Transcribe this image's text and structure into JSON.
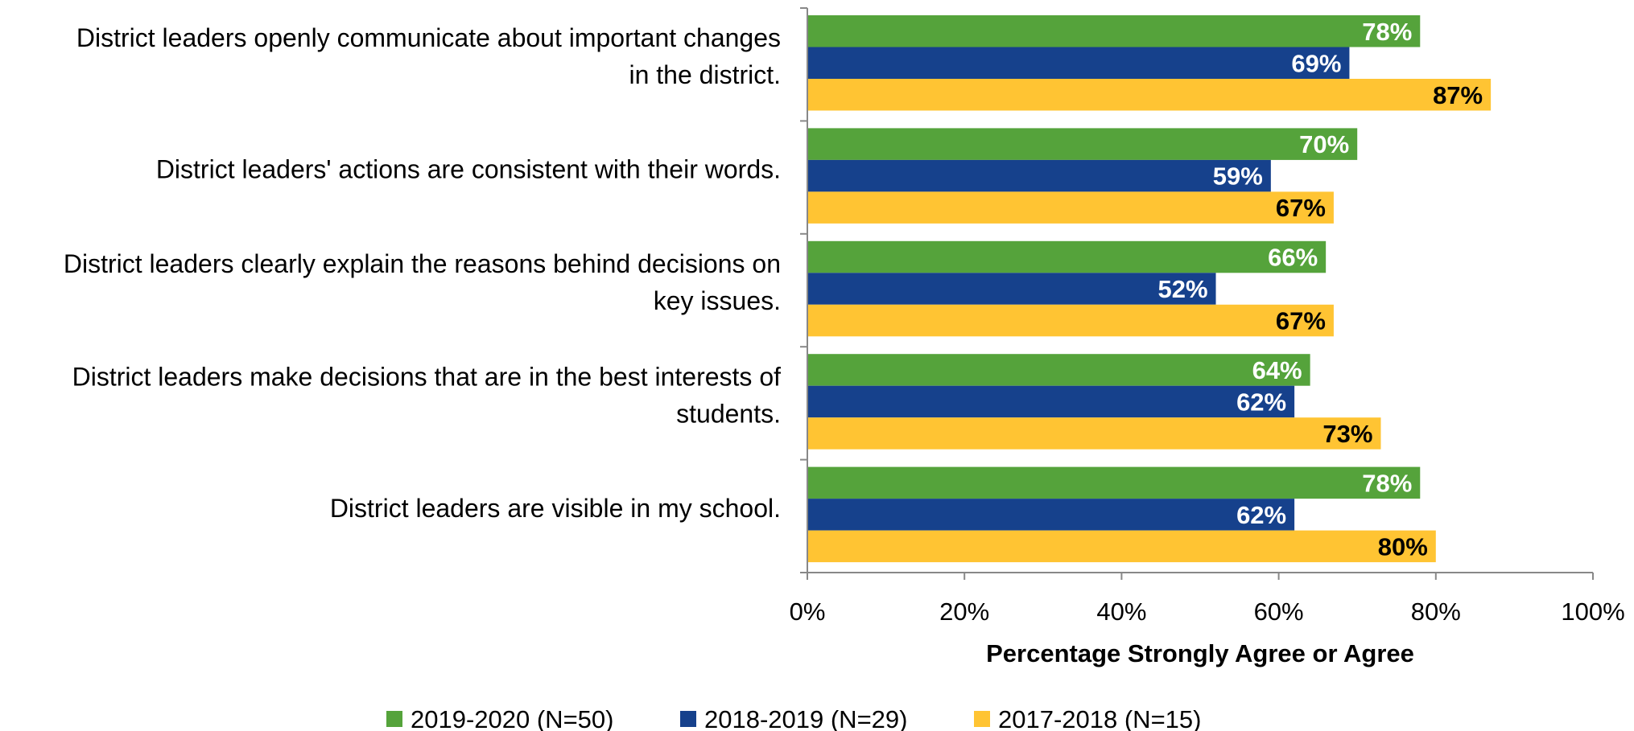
{
  "chart_data": {
    "type": "bar",
    "orientation": "horizontal",
    "categories": [
      [
        "District leaders openly communicate about important changes",
        "in the district."
      ],
      [
        "District leaders' actions are consistent with their words."
      ],
      [
        "District leaders clearly explain the reasons behind decisions on",
        "key issues."
      ],
      [
        "District leaders make decisions that are in the best interests of",
        "students."
      ],
      [
        "District leaders are visible in my school."
      ]
    ],
    "series": [
      {
        "name": "2019-2020 (N=50)",
        "color": "#55A33B",
        "label_color": "#FFFFFF",
        "values": [
          78,
          70,
          66,
          64,
          78
        ]
      },
      {
        "name": "2018-2019 (N=29)",
        "color": "#16418C",
        "label_color": "#FFFFFF",
        "values": [
          69,
          59,
          52,
          62,
          62
        ]
      },
      {
        "name": "2017-2018 (N=15)",
        "color": "#FFC433",
        "label_color": "#000000",
        "values": [
          87,
          67,
          67,
          73,
          80
        ]
      }
    ],
    "value_suffix": "%",
    "xlim": [
      0,
      100
    ],
    "xticks": [
      "0%",
      "20%",
      "40%",
      "60%",
      "80%",
      "100%"
    ],
    "xlabel": "Percentage Strongly Agree or Agree",
    "grid": false,
    "legend_position": "bottom"
  }
}
